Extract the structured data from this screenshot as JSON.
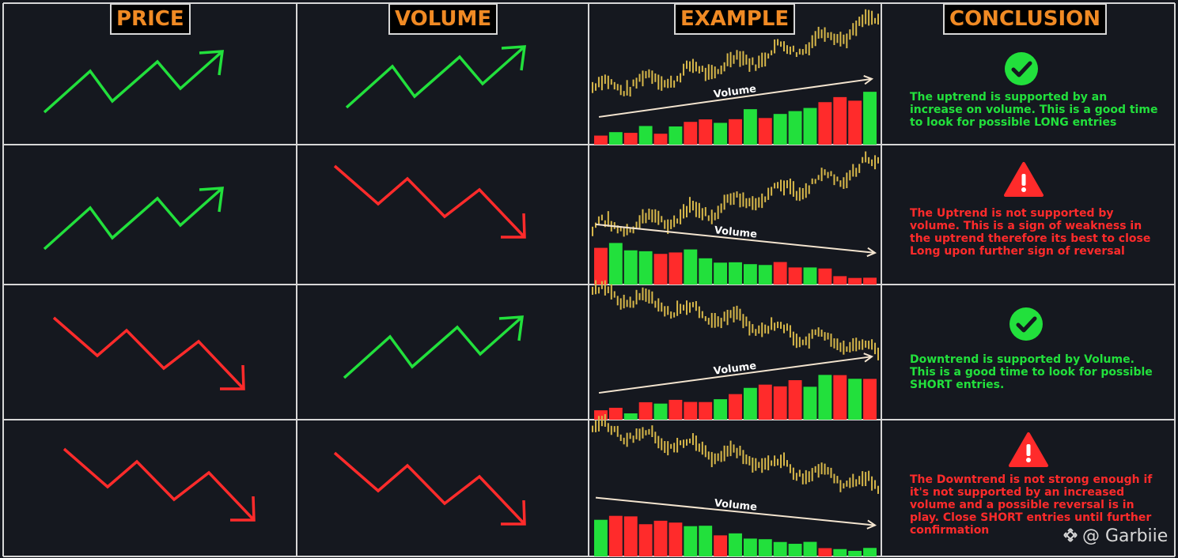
{
  "headers": {
    "price": "PRICE",
    "volume": "VOLUME",
    "example": "EXAMPLE",
    "conclusion": "CONCLUSION"
  },
  "volume_annotation": "Volume",
  "colors": {
    "background": "#15181f",
    "grid_line": "#d7d7d7",
    "header_text": "#f08a24",
    "up": "#22e03c",
    "down": "#ff2b2b",
    "candle": "#d8b84a",
    "annotation_arrow": "#f3e4cf"
  },
  "rows": [
    {
      "price_trend": "up",
      "volume_trend": "up",
      "status_icon": "check-circle-icon",
      "conclusion": "The uptrend is supported by an increase on volume. This is a good time to look for possible LONG entries",
      "conclusion_color": "green"
    },
    {
      "price_trend": "up",
      "volume_trend": "down",
      "status_icon": "warning-triangle-icon",
      "conclusion": "The Uptrend is not supported by volume. This is a sign of weakness in the uptrend therefore its best to close Long upon further sign of reversal",
      "conclusion_color": "red"
    },
    {
      "price_trend": "down",
      "volume_trend": "up",
      "status_icon": "check-circle-icon",
      "conclusion": "Downtrend is supported by Volume. This is a good time to look for possible SHORT entries.",
      "conclusion_color": "green"
    },
    {
      "price_trend": "down",
      "volume_trend": "down",
      "status_icon": "warning-triangle-icon",
      "conclusion": "The Downtrend is not strong enough if it's not supported by an increased volume and a possible reversal is in play. Close SHORT entries until further confirmation",
      "conclusion_color": "red"
    }
  ],
  "watermark": {
    "icon": "binance-logo-icon",
    "text": "@ Garbiie"
  }
}
